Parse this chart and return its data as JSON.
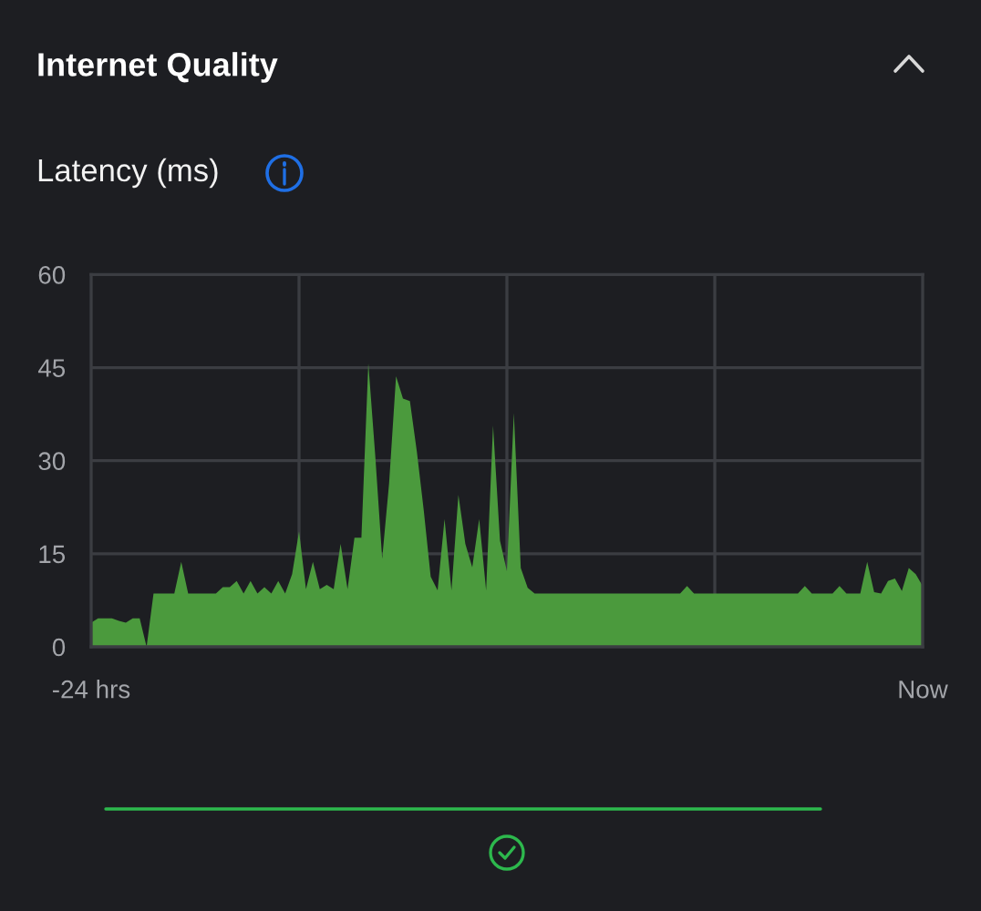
{
  "chart_data": {
    "type": "area",
    "title": "Internet Quality",
    "subtitle": "Latency (ms)",
    "categories": [
      "-24 hrs",
      null,
      null,
      null,
      null,
      null,
      null,
      null,
      null,
      null,
      null,
      null,
      null,
      null,
      null,
      null,
      null,
      null,
      null,
      null,
      null,
      null,
      null,
      null,
      null,
      null,
      null,
      null,
      null,
      null,
      null,
      null,
      null,
      null,
      null,
      null,
      null,
      null,
      null,
      null,
      null,
      null,
      null,
      null,
      null,
      null,
      null,
      null,
      null,
      null,
      null,
      null,
      null,
      null,
      null,
      null,
      null,
      null,
      null,
      null,
      null,
      null,
      null,
      null,
      null,
      null,
      null,
      null,
      null,
      null,
      null,
      null,
      null,
      null,
      null,
      null,
      null,
      null,
      null,
      null,
      null,
      null,
      null,
      null,
      null,
      null,
      null,
      null,
      null,
      null,
      null,
      null,
      null,
      null,
      null,
      null,
      null,
      null,
      null,
      null,
      null,
      null,
      null,
      null,
      null,
      null,
      null,
      null,
      null,
      null,
      null,
      null,
      null,
      null,
      null,
      null,
      null,
      null,
      null,
      null,
      "Now"
    ],
    "values": [
      3.9,
      4.6,
      4.6,
      4.6,
      4.2,
      3.9,
      4.6,
      4.6,
      0,
      8.6,
      8.6,
      8.6,
      8.6,
      13.7,
      8.6,
      8.6,
      8.6,
      8.6,
      8.6,
      9.6,
      9.6,
      10.6,
      8.6,
      10.6,
      8.6,
      9.6,
      8.6,
      10.6,
      8.6,
      11.7,
      18.6,
      9.3,
      13.7,
      9.3,
      10.0,
      9.3,
      16.6,
      9.3,
      17.6,
      17.6,
      45.7,
      30.8,
      14.2,
      26.4,
      43.6,
      40.0,
      39.6,
      31.5,
      22.0,
      11.3,
      9.1,
      20.6,
      9.1,
      24.5,
      16.6,
      12.8,
      20.6,
      9.1,
      35.7,
      17.1,
      12.2,
      37.7,
      12.7,
      9.5,
      8.6,
      8.6,
      8.6,
      8.6,
      8.6,
      8.6,
      8.6,
      8.6,
      8.6,
      8.6,
      8.6,
      8.6,
      8.6,
      8.6,
      8.6,
      8.6,
      8.6,
      8.6,
      8.6,
      8.6,
      8.6,
      8.6,
      9.8,
      8.6,
      8.6,
      8.6,
      8.6,
      8.6,
      8.6,
      8.6,
      8.6,
      8.6,
      8.6,
      8.6,
      8.6,
      8.6,
      8.6,
      8.6,
      8.6,
      9.8,
      8.6,
      8.6,
      8.6,
      8.6,
      9.8,
      8.6,
      8.6,
      8.6,
      13.7,
      8.8,
      8.6,
      10.6,
      11.0,
      9.0,
      12.7,
      11.7,
      9.8
    ],
    "color": "#4b9a3d",
    "ylim": [
      0,
      60
    ],
    "yticks": [
      0,
      15,
      30,
      45,
      60
    ],
    "grid": true
  }
}
